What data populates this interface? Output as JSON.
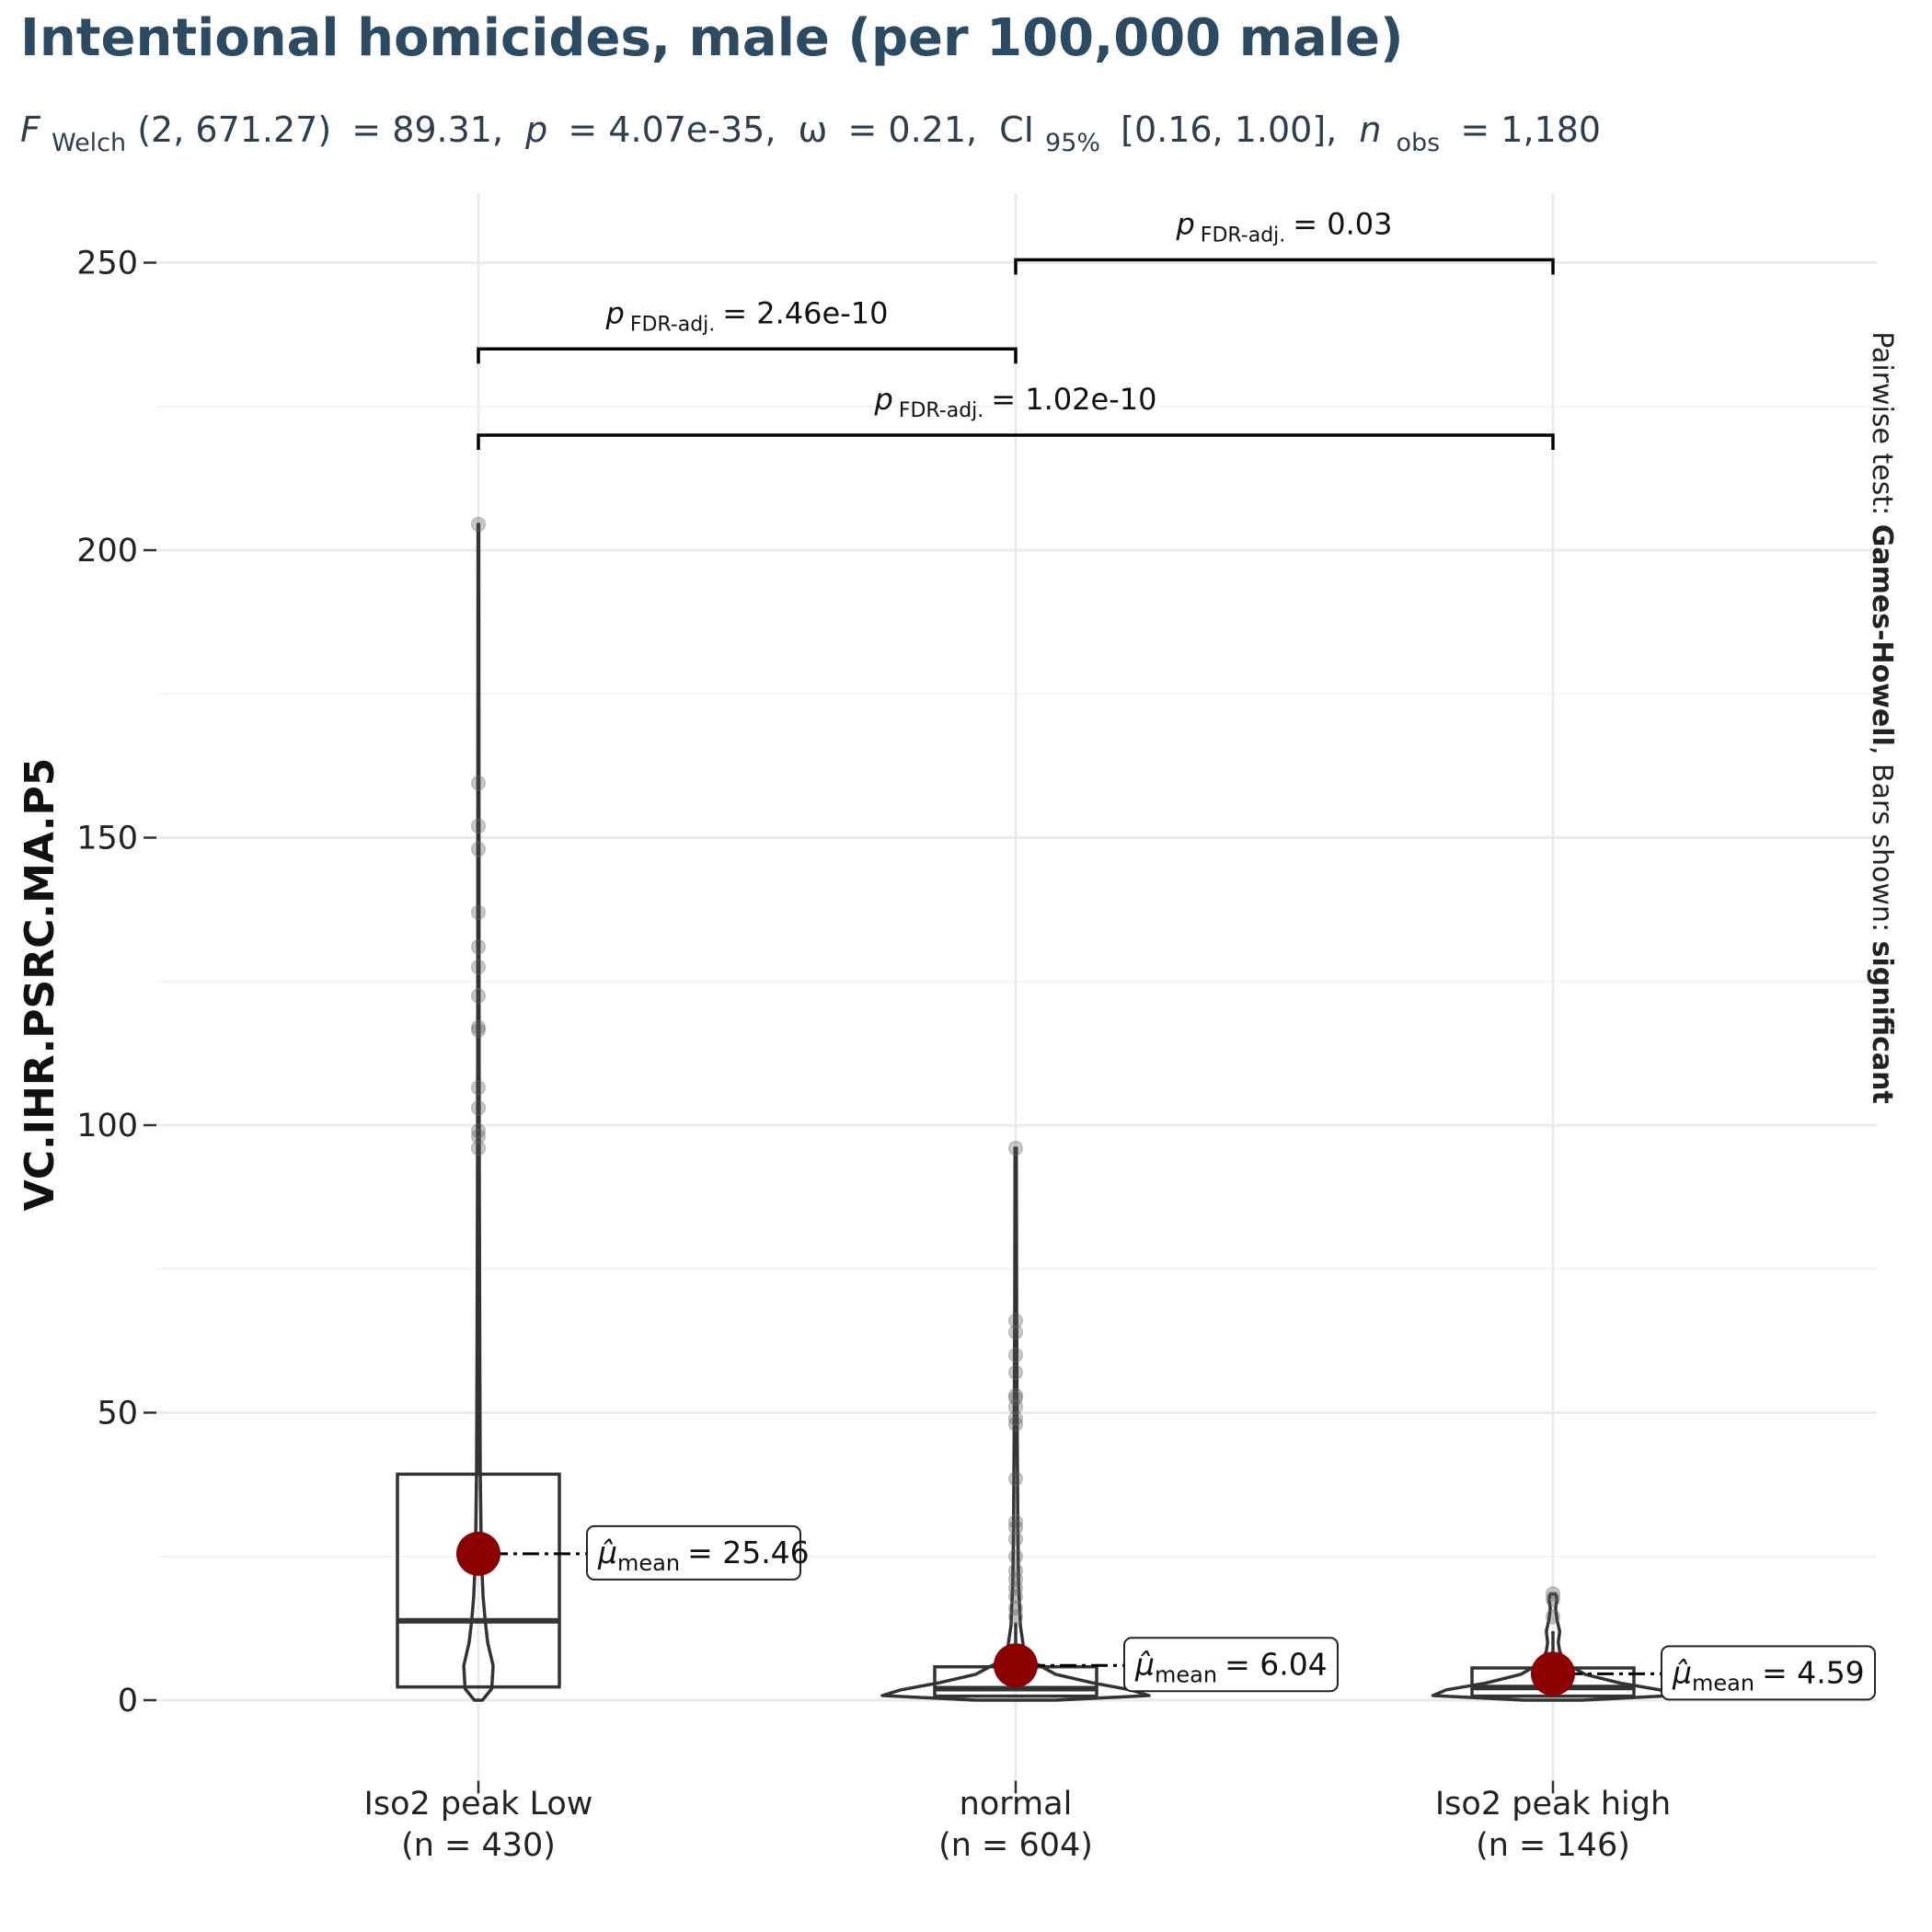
{
  "chart_data": {
    "type": "violin-box",
    "title": "Intentional homicides, male (per 100,000 male)",
    "subtitle": {
      "stat": "F",
      "stat_sub": "Welch",
      "df": "(2, 671.27)",
      "stat_value": "= 89.31,",
      "p": "p",
      "p_value": "= 4.07e-35,",
      "effect": "ω",
      "effect_value": "= 0.21,",
      "ci": "CI",
      "ci_sub": "95%",
      "ci_value": "[0.16, 1.00],",
      "n": "n",
      "n_sub": "obs",
      "n_value": "= 1,180"
    },
    "ylabel": "VC.IHR.PSRC.MA.P5",
    "ylim": [
      -14,
      262
    ],
    "yticks": [
      0,
      50,
      100,
      150,
      200,
      250
    ],
    "grid": true,
    "caption": {
      "prefix": "Pairwise test: ",
      "test": "Games-Howell",
      "middle": ", Bars shown: ",
      "bars": "significant"
    },
    "groups": [
      {
        "label_line1": "Iso2 peak  Low",
        "label_line2": "(n = 430)",
        "mean": 25.46,
        "mean_label": "= 25.46",
        "box": {
          "q1": 2.3,
          "median": 13.8,
          "q3": 39.3
        },
        "whisker_top": 89,
        "outliers": [
          96.0,
          98.0,
          99.0,
          103.0,
          106.5,
          116.5,
          117.0,
          122.5,
          127.5,
          131.0,
          137.0,
          148.0,
          152.0,
          159.5,
          204.5
        ],
        "violin": [
          [
            0,
            3
          ],
          [
            2,
            10
          ],
          [
            6,
            11
          ],
          [
            10,
            7
          ],
          [
            14,
            5
          ],
          [
            18,
            3.5
          ],
          [
            25,
            2.2
          ],
          [
            40,
            1.4
          ],
          [
            60,
            1
          ],
          [
            90,
            0.7
          ],
          [
            120,
            0.5
          ],
          [
            160,
            0.4
          ],
          [
            204.5,
            0.3
          ]
        ]
      },
      {
        "label_line1": "normal",
        "label_line2": "(n = 604)",
        "mean": 6.04,
        "mean_label": "= 6.04",
        "box": {
          "q1": 0.7,
          "median": 2.0,
          "q3": 5.8
        },
        "whisker_top": 13.5,
        "outliers": [
          14.5,
          16.0,
          18.0,
          19.5,
          21.0,
          22.5,
          25.0,
          28.0,
          30.0,
          31.0,
          38.5,
          48.0,
          49.0,
          51.0,
          52.5,
          53.0,
          57.0,
          60.0,
          64.0,
          66.0,
          96.0
        ],
        "violin": [
          [
            0,
            30
          ],
          [
            0.8,
            100
          ],
          [
            1.8,
            86
          ],
          [
            3,
            58
          ],
          [
            4.5,
            30
          ],
          [
            6.5,
            14
          ],
          [
            9,
            6
          ],
          [
            13,
            3.5
          ],
          [
            20,
            2.2
          ],
          [
            30,
            1.6
          ],
          [
            50,
            1
          ],
          [
            70,
            0.7
          ],
          [
            96,
            0.5
          ]
        ]
      },
      {
        "label_line1": "Iso2 peak  high",
        "label_line2": "(n = 146)",
        "mean": 4.59,
        "mean_label": "= 4.59",
        "box": {
          "q1": 0.7,
          "median": 2.2,
          "q3": 5.6
        },
        "whisker_top": 12,
        "outliers": [
          14.5,
          17.5,
          18.5
        ],
        "violin": [
          [
            0,
            22
          ],
          [
            0.8,
            90
          ],
          [
            1.8,
            80
          ],
          [
            3,
            50
          ],
          [
            4.5,
            24
          ],
          [
            6.5,
            9
          ],
          [
            8.5,
            5
          ],
          [
            10,
            4
          ],
          [
            12,
            5
          ],
          [
            14,
            3
          ],
          [
            16,
            2
          ],
          [
            17.5,
            3
          ],
          [
            18.5,
            2
          ]
        ]
      }
    ],
    "comparisons": [
      {
        "from": 1,
        "to": 2,
        "y": 250.5,
        "label": "= 0.03"
      },
      {
        "from": 0,
        "to": 1,
        "y": 235,
        "label": "= 2.46e-10"
      },
      {
        "from": 0,
        "to": 2,
        "y": 220,
        "label": "= 1.02e-10"
      }
    ],
    "p_symbol": "p",
    "p_subscript": "FDR-adj.",
    "mean_symbol": "μ̂",
    "mean_subscript": "mean",
    "colors": {
      "mean_point": "#8b0000",
      "title": "#2c4a62",
      "box": "#333333",
      "outlier": "#555555",
      "grid": "#ebebeb"
    }
  }
}
